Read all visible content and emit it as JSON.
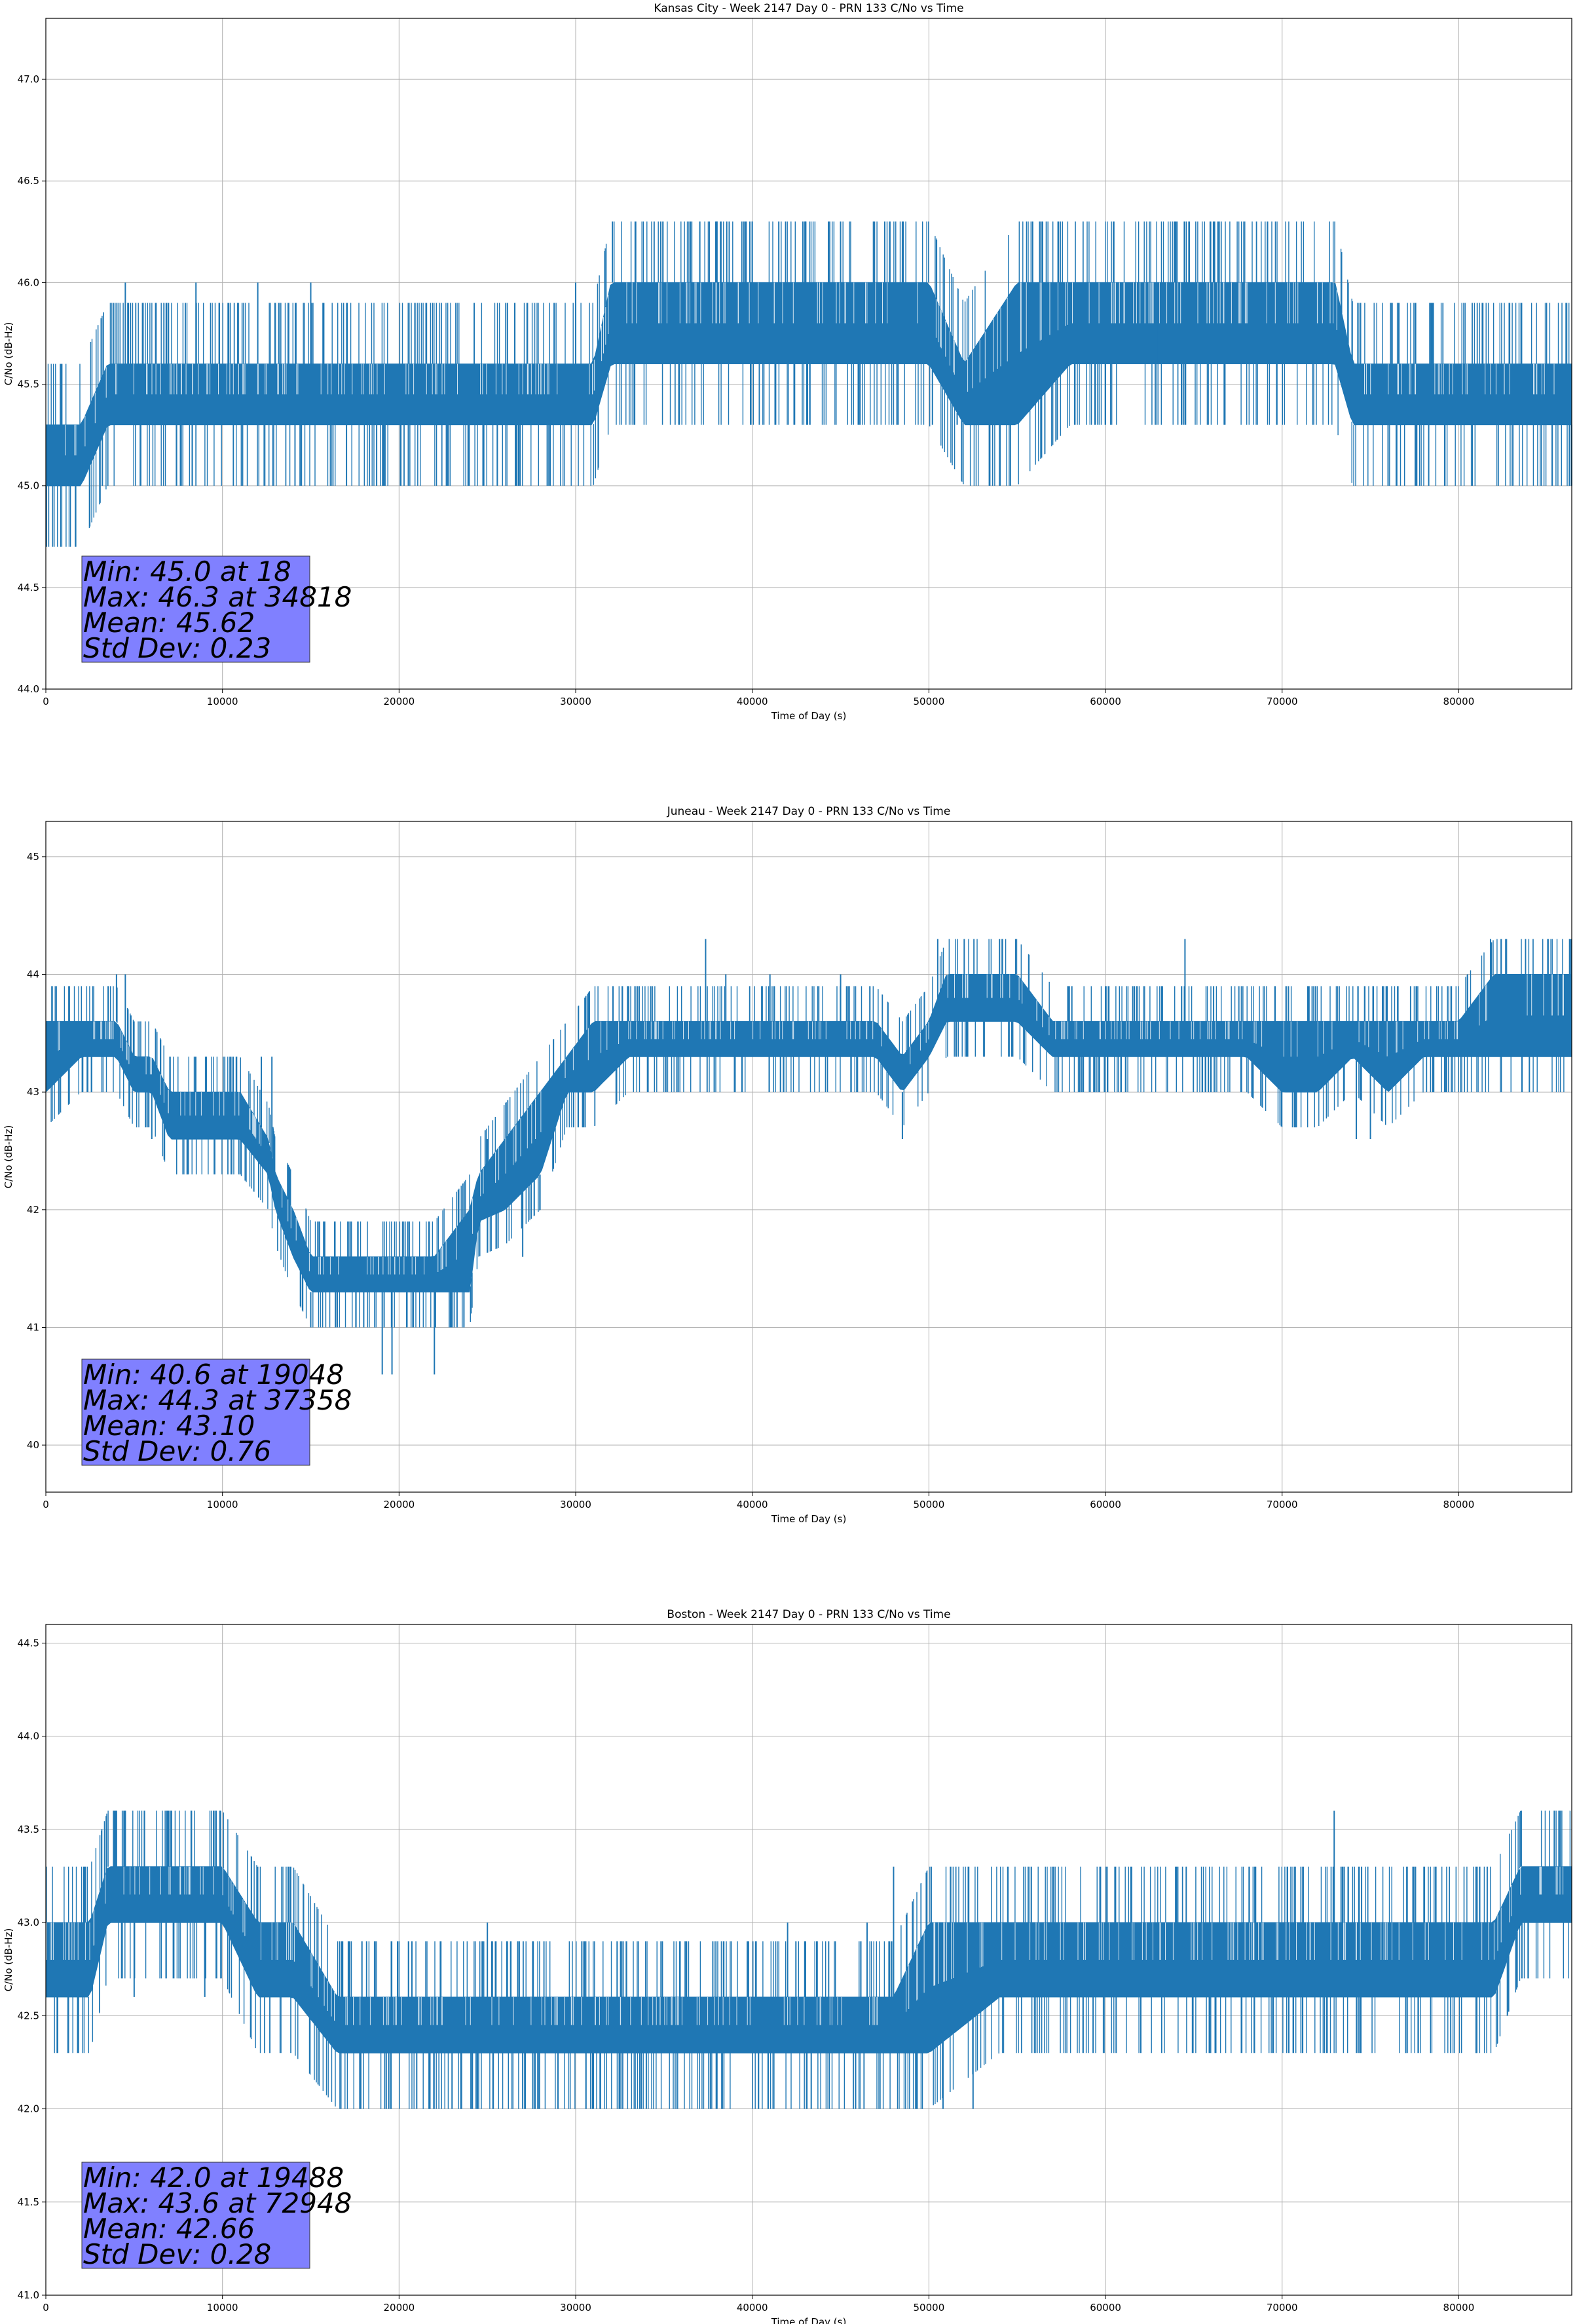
{
  "chart_data": [
    {
      "type": "line",
      "title": "Kansas City - Week 2147 Day 0 - PRN 133 C/No vs Time",
      "xlabel": "Time of Day (s)",
      "ylabel": "C/No (dB-Hz)",
      "xlim": [
        0,
        86400
      ],
      "ylim": [
        44.0,
        47.3
      ],
      "xticks": [
        0,
        10000,
        20000,
        30000,
        40000,
        50000,
        60000,
        70000,
        80000
      ],
      "yticks": [
        44.0,
        44.5,
        45.0,
        45.5,
        46.0,
        46.5,
        47.0
      ],
      "ytick_labels": [
        "44.0",
        "44.5",
        "45.0",
        "45.5",
        "46.0",
        "46.5",
        "47.0"
      ],
      "grid": true,
      "line_color": "#1f77b4",
      "series": [
        {
          "x": [
            0,
            2000,
            3500,
            5000,
            8000,
            12000,
            16000,
            20000,
            24000,
            28000,
            31000,
            32000,
            35000,
            38000,
            40000,
            43000,
            46000,
            49000,
            50000,
            52000,
            55000,
            58000,
            62000,
            66000,
            70000,
            73000,
            74000,
            78000,
            82000,
            86400
          ],
          "base": [
            45.0,
            45.0,
            45.3,
            45.3,
            45.3,
            45.3,
            45.3,
            45.3,
            45.3,
            45.3,
            45.3,
            45.6,
            45.6,
            45.6,
            45.6,
            45.6,
            45.6,
            45.6,
            45.6,
            45.3,
            45.3,
            45.6,
            45.6,
            45.6,
            45.6,
            45.6,
            45.3,
            45.3,
            45.3,
            45.3
          ],
          "top": [
            45.3,
            45.3,
            45.6,
            45.6,
            45.6,
            45.6,
            45.6,
            45.6,
            45.6,
            45.6,
            45.6,
            46.0,
            46.0,
            46.0,
            46.0,
            46.0,
            46.0,
            46.0,
            46.0,
            45.6,
            46.0,
            46.0,
            46.0,
            46.0,
            46.0,
            46.0,
            45.6,
            45.6,
            45.6,
            45.6
          ]
        }
      ],
      "extremes": [
        {
          "x": 4500,
          "y": 46.0
        },
        {
          "x": 8500,
          "y": 46.0
        },
        {
          "x": 12000,
          "y": 46.0
        },
        {
          "x": 15000,
          "y": 46.0
        },
        {
          "x": 26800,
          "y": 45.0
        },
        {
          "x": 30000,
          "y": 46.0
        },
        {
          "x": 34818,
          "y": 46.3
        },
        {
          "x": 36500,
          "y": 46.3
        },
        {
          "x": 38000,
          "y": 46.3
        },
        {
          "x": 40000,
          "y": 46.3
        },
        {
          "x": 41500,
          "y": 46.3
        },
        {
          "x": 43000,
          "y": 46.3
        },
        {
          "x": 45000,
          "y": 46.3
        },
        {
          "x": 47500,
          "y": 46.3
        },
        {
          "x": 48500,
          "y": 46.3
        },
        {
          "x": 50200,
          "y": 45.3
        },
        {
          "x": 51600,
          "y": 45.3
        },
        {
          "x": 63000,
          "y": 46.0
        },
        {
          "x": 76000,
          "y": 45.0
        },
        {
          "x": 78300,
          "y": 45.0
        },
        {
          "x": 18,
          "y": 45.0
        },
        {
          "x": 1000,
          "y": 45.0
        },
        {
          "x": 3200,
          "y": 45.0
        }
      ],
      "stats": {
        "min": "Min: 45.0 at 18",
        "max": "Max: 46.3 at 34818",
        "mean": "Mean: 45.62",
        "std": "Std Dev: 0.23"
      }
    },
    {
      "type": "line",
      "title": "Juneau - Week 2147 Day 0 - PRN 133 C/No vs Time",
      "xlabel": "Time of Day (s)",
      "ylabel": "C/No (dB-Hz)",
      "xlim": [
        0,
        86400
      ],
      "ylim": [
        39.6,
        45.3
      ],
      "xticks": [
        0,
        10000,
        20000,
        30000,
        40000,
        50000,
        60000,
        70000,
        80000
      ],
      "yticks": [
        40,
        41,
        42,
        43,
        44,
        45
      ],
      "ytick_labels": [
        "40",
        "41",
        "42",
        "43",
        "44",
        "45"
      ],
      "grid": true,
      "line_color": "#1f77b4",
      "series": [
        {
          "x": [
            0,
            2000,
            4000,
            5000,
            6000,
            7000,
            9000,
            11000,
            12600,
            13000,
            14000,
            15000,
            16000,
            18000,
            20000,
            22000,
            24000,
            24500,
            26000,
            28000,
            29500,
            31000,
            33000,
            36000,
            40000,
            44000,
            47000,
            48500,
            50000,
            51000,
            53000,
            55000,
            57000,
            60000,
            64000,
            68000,
            70000,
            72000,
            74000,
            76000,
            78000,
            80000,
            82000,
            84000,
            86400
          ],
          "base": [
            43.0,
            43.3,
            43.3,
            43.0,
            43.0,
            42.6,
            42.6,
            42.6,
            42.3,
            42.0,
            41.6,
            41.3,
            41.3,
            41.3,
            41.3,
            41.3,
            41.3,
            41.9,
            42.0,
            42.3,
            43.0,
            43.0,
            43.3,
            43.3,
            43.3,
            43.3,
            43.3,
            43.0,
            43.3,
            43.6,
            43.6,
            43.6,
            43.3,
            43.3,
            43.3,
            43.3,
            43.0,
            43.0,
            43.3,
            43.0,
            43.3,
            43.3,
            43.3,
            43.3,
            43.3
          ],
          "top": [
            43.6,
            43.6,
            43.6,
            43.3,
            43.3,
            43.0,
            43.0,
            43.0,
            42.6,
            42.3,
            42.0,
            41.6,
            41.6,
            41.6,
            41.6,
            41.6,
            42.0,
            42.3,
            42.6,
            43.0,
            43.3,
            43.6,
            43.6,
            43.6,
            43.6,
            43.6,
            43.6,
            43.3,
            43.6,
            44.0,
            44.0,
            44.0,
            43.6,
            43.6,
            43.6,
            43.6,
            43.6,
            43.6,
            43.6,
            43.6,
            43.6,
            43.6,
            44.0,
            44.0,
            44.0
          ]
        }
      ],
      "extremes": [
        {
          "x": 4000,
          "y": 44.0
        },
        {
          "x": 4500,
          "y": 44.0
        },
        {
          "x": 6000,
          "y": 42.6
        },
        {
          "x": 8000,
          "y": 42.3
        },
        {
          "x": 11000,
          "y": 42.3
        },
        {
          "x": 12200,
          "y": 43.3
        },
        {
          "x": 12800,
          "y": 43.3
        },
        {
          "x": 15000,
          "y": 41.0
        },
        {
          "x": 16500,
          "y": 41.0
        },
        {
          "x": 18000,
          "y": 41.0
        },
        {
          "x": 19048,
          "y": 40.6
        },
        {
          "x": 19600,
          "y": 40.6
        },
        {
          "x": 22000,
          "y": 40.6
        },
        {
          "x": 23000,
          "y": 41.0
        },
        {
          "x": 25000,
          "y": 42.6
        },
        {
          "x": 27000,
          "y": 41.6
        },
        {
          "x": 37358,
          "y": 44.3
        },
        {
          "x": 38500,
          "y": 44.0
        },
        {
          "x": 41000,
          "y": 44.0
        },
        {
          "x": 45000,
          "y": 44.0
        },
        {
          "x": 48500,
          "y": 42.6
        },
        {
          "x": 50500,
          "y": 44.3
        },
        {
          "x": 52000,
          "y": 44.3
        },
        {
          "x": 54000,
          "y": 44.3
        },
        {
          "x": 64500,
          "y": 44.3
        },
        {
          "x": 74200,
          "y": 42.6
        },
        {
          "x": 75000,
          "y": 42.6
        },
        {
          "x": 80500,
          "y": 44.0
        },
        {
          "x": 81800,
          "y": 44.3
        },
        {
          "x": 84000,
          "y": 43.0
        }
      ],
      "stats": {
        "min": "Min: 40.6 at 19048",
        "max": "Max: 44.3 at 37358",
        "mean": "Mean: 43.10",
        "std": "Std Dev: 0.76"
      }
    },
    {
      "type": "line",
      "title": "Boston - Week 2147 Day 0 - PRN 133 C/No vs Time",
      "xlabel": "Time of Day (s)",
      "ylabel": "C/No (dB-Hz)",
      "xlim": [
        0,
        86400
      ],
      "ylim": [
        41.0,
        44.6
      ],
      "xticks": [
        0,
        10000,
        20000,
        30000,
        40000,
        50000,
        60000,
        70000,
        80000
      ],
      "yticks": [
        41.0,
        41.5,
        42.0,
        42.5,
        43.0,
        43.5,
        44.0,
        44.5
      ],
      "ytick_labels": [
        "41.0",
        "41.5",
        "42.0",
        "42.5",
        "43.0",
        "43.5",
        "44.0",
        "44.5"
      ],
      "grid": true,
      "line_color": "#1f77b4",
      "series": [
        {
          "x": [
            0,
            2500,
            3500,
            7000,
            10000,
            12000,
            14000,
            16500,
            20000,
            24000,
            28000,
            32000,
            36000,
            40000,
            44000,
            48000,
            50000,
            54000,
            58000,
            62000,
            66000,
            70000,
            74000,
            78000,
            82000,
            83500,
            86400
          ],
          "base": [
            42.6,
            42.6,
            43.0,
            43.0,
            43.0,
            42.6,
            42.6,
            42.3,
            42.3,
            42.3,
            42.3,
            42.3,
            42.3,
            42.3,
            42.3,
            42.3,
            42.3,
            42.6,
            42.6,
            42.6,
            42.6,
            42.6,
            42.6,
            42.6,
            42.6,
            43.0,
            43.0
          ],
          "top": [
            43.0,
            43.0,
            43.3,
            43.3,
            43.3,
            43.0,
            43.0,
            42.6,
            42.6,
            42.6,
            42.6,
            42.6,
            42.6,
            42.6,
            42.6,
            42.6,
            43.0,
            43.0,
            43.0,
            43.0,
            43.0,
            43.0,
            43.0,
            43.0,
            43.0,
            43.3,
            43.3
          ]
        }
      ],
      "extremes": [
        {
          "x": 5000,
          "y": 42.6
        },
        {
          "x": 9000,
          "y": 42.6
        },
        {
          "x": 13000,
          "y": 42.6
        },
        {
          "x": 19488,
          "y": 42.0
        },
        {
          "x": 21000,
          "y": 42.0
        },
        {
          "x": 23000,
          "y": 42.0
        },
        {
          "x": 25000,
          "y": 43.0
        },
        {
          "x": 27000,
          "y": 42.0
        },
        {
          "x": 29000,
          "y": 42.0
        },
        {
          "x": 31000,
          "y": 42.0
        },
        {
          "x": 34000,
          "y": 42.0
        },
        {
          "x": 38000,
          "y": 42.0
        },
        {
          "x": 42000,
          "y": 43.0
        },
        {
          "x": 46500,
          "y": 43.0
        },
        {
          "x": 48000,
          "y": 43.3
        },
        {
          "x": 50800,
          "y": 42.0
        },
        {
          "x": 52500,
          "y": 42.0
        },
        {
          "x": 62000,
          "y": 42.3
        },
        {
          "x": 68500,
          "y": 43.3
        },
        {
          "x": 70500,
          "y": 43.3
        },
        {
          "x": 72948,
          "y": 43.6
        },
        {
          "x": 74500,
          "y": 43.3
        },
        {
          "x": 77000,
          "y": 42.3
        },
        {
          "x": 81000,
          "y": 42.3
        }
      ],
      "stats": {
        "min": "Min: 42.0 at 19488",
        "max": "Max: 43.6 at 72948",
        "mean": "Mean: 42.66",
        "std": "Std Dev: 0.28"
      }
    }
  ]
}
